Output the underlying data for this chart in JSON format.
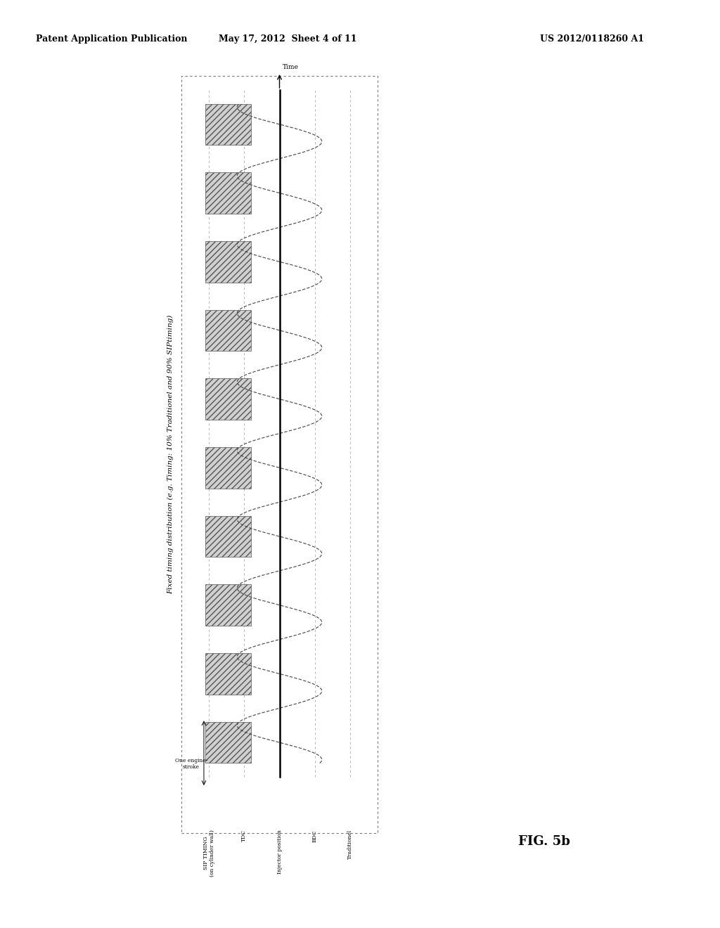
{
  "title": "Fixed timing distribution (e.g. Timing: 10% Traditionel and 90% SIPtiming)",
  "header_left": "Patent Application Publication",
  "header_center": "May 17, 2012  Sheet 4 of 11",
  "header_right": "US 2012/0118260 A1",
  "fig_label": "FIG. 5b",
  "time_label": "Time",
  "row_labels": [
    "SIP TIMING\n(on cylinder wall)",
    "TDC",
    "Injector position",
    "BDC",
    "Traditionel"
  ],
  "one_engine_stroke_label": "One engine-\nstroke",
  "num_cycles": 10,
  "background_color": "#ffffff",
  "sip_rect_color": "#cccccc",
  "wave_color": "#555555",
  "center_line_color": "#000000",
  "dot_border_color": "#888888"
}
